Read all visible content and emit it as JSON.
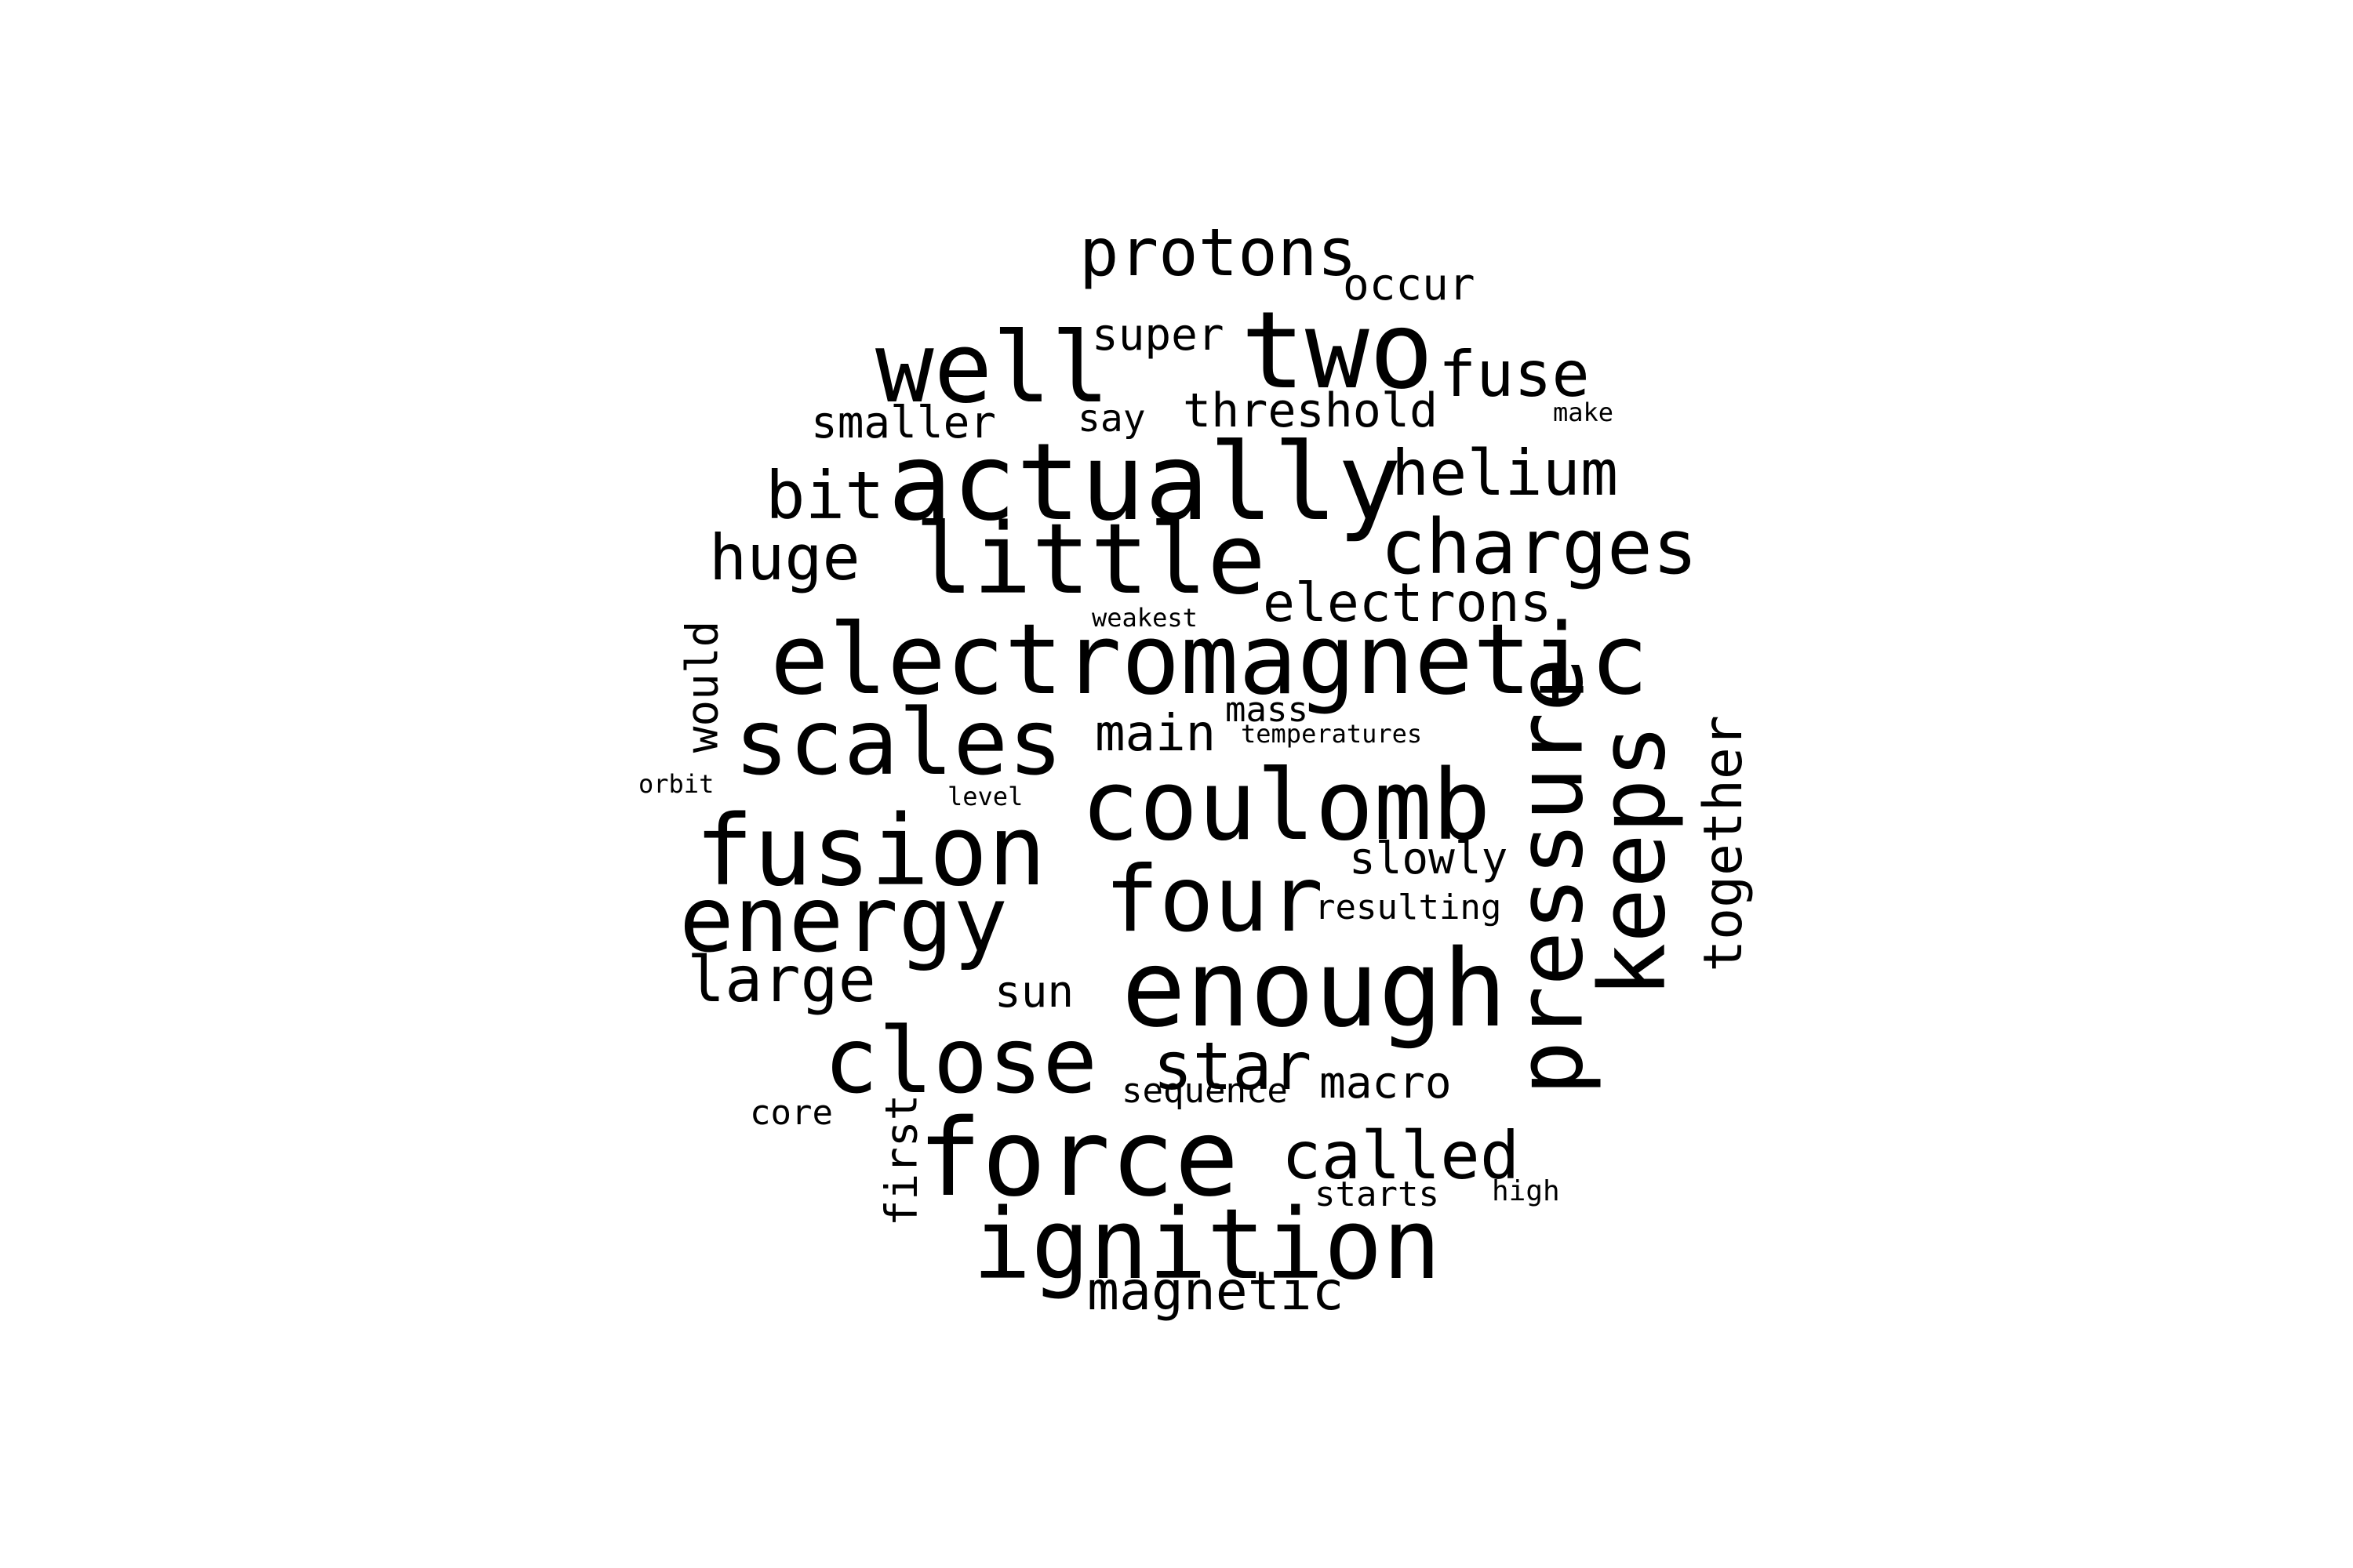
{
  "text_color": "#000000",
  "background_color": "#ffffff",
  "words": [
    "protons",
    "occur",
    "well",
    "super",
    "two",
    "fuse",
    "smaller",
    "say",
    "threshold",
    "make",
    "bit",
    "actually",
    "helium",
    "huge",
    "little",
    "charges",
    "electrons",
    "weakest",
    "would",
    "electromagnetic",
    "mass",
    "scales",
    "main",
    "temperatures",
    "orbit",
    "level",
    "coulomb",
    "pressure",
    "keeps",
    "together",
    "fusion",
    "slowly",
    "four",
    "energy",
    "resulting",
    "large",
    "sun",
    "enough",
    "close",
    "star",
    "sequence",
    "macro",
    "core",
    "first",
    "force",
    "called",
    "starts",
    "high",
    "ignition",
    "magnetic"
  ]
}
